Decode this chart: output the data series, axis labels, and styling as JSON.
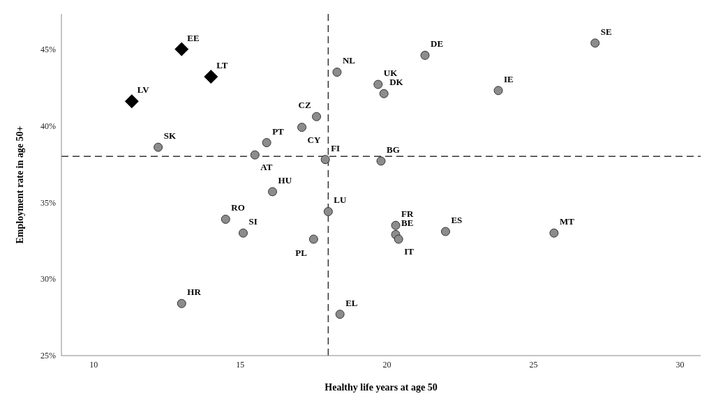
{
  "chart_data": {
    "type": "scatter",
    "xlabel": "Healthy life years at age 50",
    "ylabel": "Employment rate in age 50+",
    "xlim": [
      8.9,
      30.7
    ],
    "xticks": [
      10,
      15,
      20,
      25,
      30
    ],
    "ylim": [
      25,
      47.3
    ],
    "yticks": [
      {
        "value": 25,
        "label": "25%"
      },
      {
        "value": 30,
        "label": "30%"
      },
      {
        "value": 35,
        "label": "35%"
      },
      {
        "value": 40,
        "label": "40%"
      },
      {
        "value": 45,
        "label": "45%"
      }
    ],
    "grid": false,
    "series": [
      {
        "color": "#000000",
        "marker": "diamond",
        "x": [
          13.0,
          14.0,
          11.3
        ],
        "values": [
          45.0,
          43.2,
          41.6
        ]
      },
      {
        "color": "#8c8c8c",
        "marker": "circle",
        "x": [
          12.2,
          15.9,
          15.5,
          17.1,
          17.6,
          17.9,
          18.3,
          19.7,
          19.9,
          21.3,
          27.1,
          23.8,
          19.8,
          16.1,
          18.0,
          14.5,
          15.1,
          17.5,
          20.3,
          20.3,
          20.4,
          22.0,
          25.7,
          13.0,
          18.4
        ],
        "values": [
          38.6,
          38.9,
          38.1,
          39.9,
          40.6,
          37.8,
          43.5,
          42.7,
          42.1,
          44.6,
          45.4,
          42.3,
          37.7,
          35.7,
          34.4,
          33.9,
          33.0,
          32.6,
          33.5,
          32.9,
          32.6,
          33.1,
          33.0,
          28.4,
          27.7
        ]
      }
    ],
    "ref_lines": [
      {
        "axis": "x",
        "value": 18,
        "line_style": "dashed",
        "color": "#333333"
      },
      {
        "axis": "y",
        "value": 38,
        "line_style": "dashed",
        "color": "#333333"
      }
    ],
    "annotations": [
      {
        "text": "EE",
        "x": 13.0,
        "y": 45.0
      },
      {
        "text": "LT",
        "x": 14.0,
        "y": 43.2
      },
      {
        "text": "LV",
        "x": 11.3,
        "y": 41.6
      },
      {
        "text": "SK",
        "x": 12.2,
        "y": 38.6
      },
      {
        "text": "PT",
        "x": 15.9,
        "y": 38.9
      },
      {
        "text": "AT",
        "x": 15.5,
        "y": 38.1
      },
      {
        "text": "CY",
        "x": 17.1,
        "y": 39.9
      },
      {
        "text": "CZ",
        "x": 17.6,
        "y": 40.6
      },
      {
        "text": "FI",
        "x": 17.9,
        "y": 37.8
      },
      {
        "text": "NL",
        "x": 18.3,
        "y": 43.5
      },
      {
        "text": "UK",
        "x": 19.7,
        "y": 42.7
      },
      {
        "text": "DK",
        "x": 19.9,
        "y": 42.1
      },
      {
        "text": "DE",
        "x": 21.3,
        "y": 44.6
      },
      {
        "text": "SE",
        "x": 27.1,
        "y": 45.4
      },
      {
        "text": "IE",
        "x": 23.8,
        "y": 42.3
      },
      {
        "text": "BG",
        "x": 19.8,
        "y": 37.7
      },
      {
        "text": "HU",
        "x": 16.1,
        "y": 35.7
      },
      {
        "text": "LU",
        "x": 18.0,
        "y": 34.4
      },
      {
        "text": "RO",
        "x": 14.5,
        "y": 33.9
      },
      {
        "text": "SI",
        "x": 15.1,
        "y": 33.0
      },
      {
        "text": "PL",
        "x": 17.5,
        "y": 32.6
      },
      {
        "text": "FR",
        "x": 20.3,
        "y": 33.5
      },
      {
        "text": "BE",
        "x": 20.3,
        "y": 32.9
      },
      {
        "text": "IT",
        "x": 20.4,
        "y": 32.6
      },
      {
        "text": "ES",
        "x": 22.0,
        "y": 33.1
      },
      {
        "text": "MT",
        "x": 25.7,
        "y": 33.0
      },
      {
        "text": "HR",
        "x": 13.0,
        "y": 28.4
      },
      {
        "text": "EL",
        "x": 18.4,
        "y": 27.7
      }
    ]
  }
}
